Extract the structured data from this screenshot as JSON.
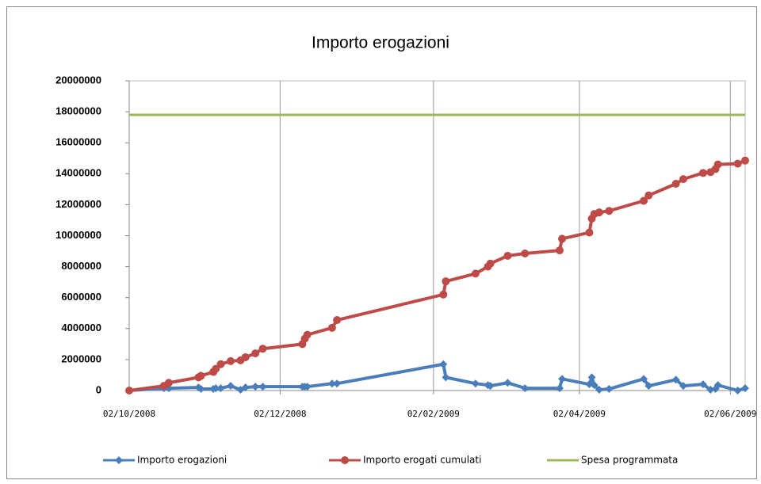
{
  "chart_data": {
    "type": "line",
    "title": "Importo erogazioni",
    "x": [
      "2008-10-02",
      "2008-10-16",
      "2008-10-18",
      "2008-10-30",
      "2008-10-31",
      "2008-11-05",
      "2008-11-06",
      "2008-11-08",
      "2008-11-12",
      "2008-11-16",
      "2008-11-18",
      "2008-11-22",
      "2008-11-25",
      "2008-12-11",
      "2008-12-12",
      "2008-12-13",
      "2008-12-23",
      "2008-12-25",
      "2009-02-06",
      "2009-02-07",
      "2009-02-19",
      "2009-02-24",
      "2009-02-25",
      "2009-03-04",
      "2009-03-11",
      "2009-03-25",
      "2009-03-26",
      "2009-04-06",
      "2009-04-07",
      "2009-04-08",
      "2009-04-10",
      "2009-04-14",
      "2009-04-28",
      "2009-04-30",
      "2009-05-11",
      "2009-05-14",
      "2009-05-22",
      "2009-05-25",
      "2009-05-27",
      "2009-05-28",
      "2009-06-05",
      "2009-06-08"
    ],
    "series": [
      {
        "name": "Importo erogazioni",
        "color": "#4a7ebb",
        "marker": "diamond",
        "values": [
          0,
          150000,
          150000,
          200000,
          100000,
          100000,
          150000,
          150000,
          300000,
          50000,
          200000,
          250000,
          250000,
          250000,
          250000,
          250000,
          450000,
          450000,
          1700000,
          850000,
          450000,
          350000,
          300000,
          500000,
          150000,
          150000,
          750000,
          400000,
          850000,
          350000,
          50000,
          100000,
          750000,
          300000,
          700000,
          300000,
          400000,
          50000,
          100000,
          350000,
          0,
          150000
        ]
      },
      {
        "name": "Importo erogati cumulati",
        "color": "#be4b48",
        "marker": "circle",
        "values": [
          0,
          300000,
          500000,
          850000,
          950000,
          1200000,
          1400000,
          1700000,
          1900000,
          1950000,
          2150000,
          2400000,
          2700000,
          3000000,
          3350000,
          3600000,
          4050000,
          4550000,
          6200000,
          7050000,
          7550000,
          8000000,
          8200000,
          8700000,
          8850000,
          9050000,
          9800000,
          10200000,
          11100000,
          11400000,
          11500000,
          11600000,
          12250000,
          12600000,
          13350000,
          13650000,
          14050000,
          14100000,
          14300000,
          14600000,
          14650000,
          14850000
        ]
      },
      {
        "name": "Spesa programmata",
        "color": "#98b954",
        "marker": "none",
        "values": [
          17800000,
          17800000,
          17800000,
          17800000,
          17800000,
          17800000,
          17800000,
          17800000,
          17800000,
          17800000,
          17800000,
          17800000,
          17800000,
          17800000,
          17800000,
          17800000,
          17800000,
          17800000,
          17800000,
          17800000,
          17800000,
          17800000,
          17800000,
          17800000,
          17800000,
          17800000,
          17800000,
          17800000,
          17800000,
          17800000,
          17800000,
          17800000,
          17800000,
          17800000,
          17800000,
          17800000,
          17800000,
          17800000,
          17800000,
          17800000,
          17800000,
          17800000
        ]
      }
    ],
    "xlim": [
      "2008-10-02",
      "2009-06-08"
    ],
    "xticks": [
      {
        "value": "2008-10-02",
        "label": "02/10/2008"
      },
      {
        "value": "2008-12-02",
        "label": "02/12/2008"
      },
      {
        "value": "2009-02-02",
        "label": "02/02/2009"
      },
      {
        "value": "2009-04-02",
        "label": "02/04/2009"
      },
      {
        "value": "2009-06-02",
        "label": "02/06/2009"
      }
    ],
    "ylim": [
      0,
      20000000
    ],
    "yticks": [
      0,
      2000000,
      4000000,
      6000000,
      8000000,
      10000000,
      12000000,
      14000000,
      16000000,
      18000000,
      20000000
    ],
    "grid": "x",
    "legend": "bottom"
  }
}
